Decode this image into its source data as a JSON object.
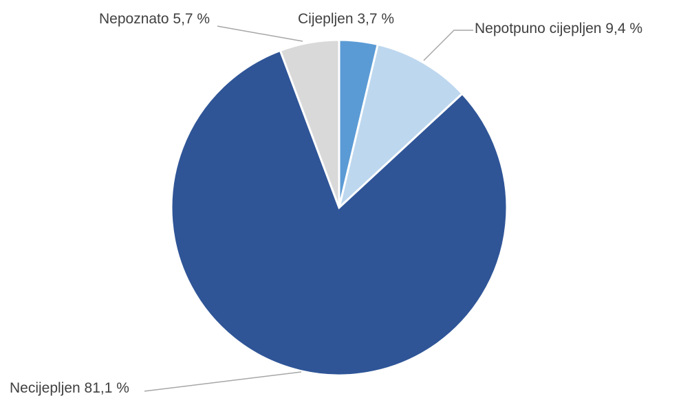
{
  "chart_data": {
    "type": "pie",
    "title": "",
    "slices": [
      {
        "label": "Cijepljen",
        "value": 3.7,
        "display": "Cijepljen 3,7 %",
        "color": "#5b9bd5"
      },
      {
        "label": "Nepotpuno cijepljen",
        "value": 9.4,
        "display": "Nepotpuno cijepljen 9,4 %",
        "color": "#bdd7ee"
      },
      {
        "label": "Necijepljen",
        "value": 81.1,
        "display": "Necijepljen 81,1 %",
        "color": "#2f5597"
      },
      {
        "label": "Nepoznato",
        "value": 5.7,
        "display": "Nepoznato 5,7 %",
        "color": "#d9d9d9"
      }
    ],
    "start_angle_deg": 0,
    "direction": "clockwise",
    "legend": "none"
  }
}
